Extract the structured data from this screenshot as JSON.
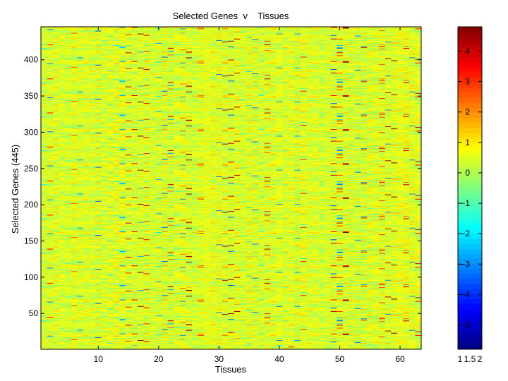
{
  "chart_data": [
    {
      "type": "heatmap",
      "title": "Selected Genes  v    Tissues",
      "xlabel": "Tissues",
      "ylabel": "Selected Genes (445)",
      "x_count": 63,
      "y_count": 445,
      "xlim": [
        0.5,
        63.5
      ],
      "ylim": [
        0.5,
        445.5
      ],
      "x_ticks": [
        10,
        20,
        30,
        40,
        50,
        60
      ],
      "y_ticks": [
        50,
        100,
        150,
        200,
        250,
        300,
        350,
        400
      ],
      "value_range": [
        -5.8,
        4.8
      ],
      "colormap": "jet",
      "values_note": ""
    },
    {
      "type": "colorbar",
      "colormap": "jet",
      "clim": [
        -5.8,
        4.8
      ],
      "ticks": [
        -5,
        -4,
        -3,
        -2,
        -1,
        0,
        1,
        2,
        3,
        4
      ],
      "tick_labels": [
        "−5",
        "−4",
        "−3",
        "−2",
        "−1",
        "0",
        "1",
        "2",
        "3",
        "4"
      ],
      "x_ticks": [
        1,
        1.5,
        2
      ],
      "x_tick_labels": [
        "1",
        "1.5",
        "2"
      ]
    }
  ]
}
